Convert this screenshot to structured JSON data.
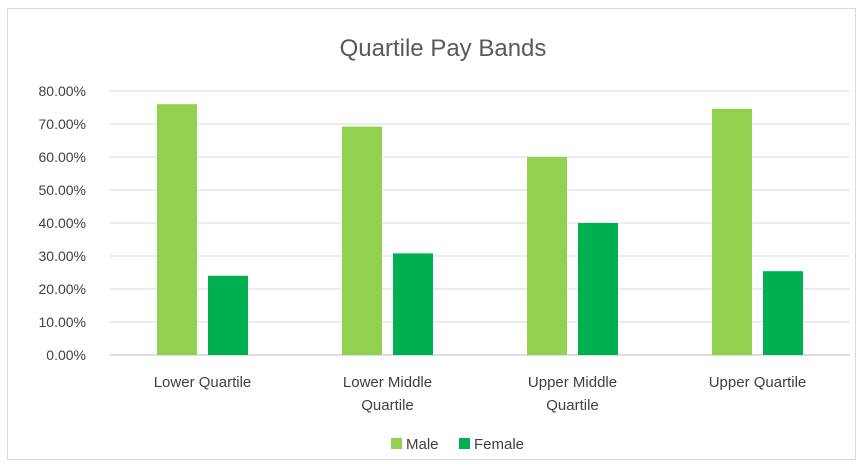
{
  "chart_data": {
    "type": "bar",
    "title": "Quartile Pay Bands",
    "categories": [
      [
        "Lower Quartile"
      ],
      [
        "Lower Middle",
        "Quartile"
      ],
      [
        "Upper Middle",
        "Quartile"
      ],
      [
        "Upper Quartile"
      ]
    ],
    "series": [
      {
        "name": "Male",
        "color": "#92d050",
        "values": [
          76.0,
          69.2,
          60.0,
          74.6
        ]
      },
      {
        "name": "Female",
        "color": "#00b050",
        "values": [
          24.0,
          30.8,
          40.0,
          25.4
        ]
      }
    ],
    "ylim": [
      0,
      80
    ],
    "yticks": [
      "0.00%",
      "10.00%",
      "20.00%",
      "30.00%",
      "40.00%",
      "50.00%",
      "60.00%",
      "70.00%",
      "80.00%"
    ],
    "grid": true,
    "legend_position": "bottom"
  }
}
